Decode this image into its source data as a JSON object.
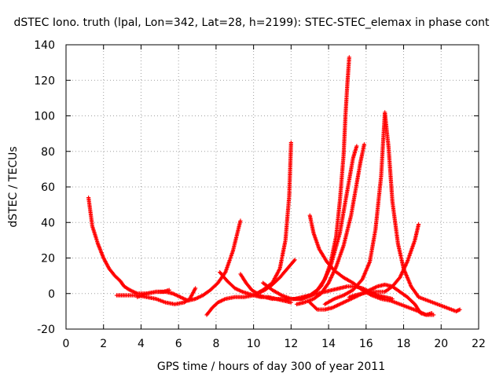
{
  "chart_data": {
    "type": "scatter",
    "title": "dSTEC Iono. truth (lpal, Lon=342, Lat=28, h=2199): STEC-STEC_elemax in phase cont",
    "xlabel": "GPS time / hours of day 300 of year 2011",
    "ylabel": "dSTEC  / TECUs",
    "xlim": [
      0,
      22
    ],
    "ylim": [
      -20,
      140
    ],
    "x_ticks": [
      0,
      2,
      4,
      6,
      8,
      10,
      12,
      14,
      16,
      18,
      20,
      22
    ],
    "y_ticks": [
      -20,
      0,
      20,
      40,
      60,
      80,
      100,
      120,
      140
    ],
    "grid": true,
    "marker": "+",
    "color": "#ff0000",
    "series": [
      {
        "x": [
          1.2,
          1.4,
          1.7,
          2.0,
          2.3,
          2.6,
          2.9,
          3.1,
          3.4,
          3.8,
          4.3,
          4.8,
          5.2,
          5.5
        ],
        "y": [
          54,
          38,
          28,
          20,
          14,
          10,
          7,
          4,
          2,
          0,
          0,
          1,
          1,
          2
        ]
      },
      {
        "x": [
          2.7,
          3.2,
          3.8,
          4.3,
          4.8,
          5.3,
          5.8,
          6.3,
          6.6,
          6.9
        ],
        "y": [
          -1,
          -1,
          -1,
          -2,
          -3,
          -5,
          -6,
          -5,
          -3,
          3
        ]
      },
      {
        "x": [
          3.8,
          4.3,
          4.8,
          5.3,
          5.7,
          6.1,
          6.5,
          6.9,
          7.3,
          7.7,
          8.1,
          8.5,
          8.9,
          9.3
        ],
        "y": [
          -2,
          0,
          1,
          1,
          0,
          -2,
          -4,
          -3,
          -1,
          2,
          6,
          12,
          24,
          41
        ]
      },
      {
        "x": [
          7.5,
          7.8,
          8.1,
          8.5,
          9.0,
          9.5,
          10.0,
          10.5,
          11.0,
          11.4,
          11.7,
          11.9,
          12.0
        ],
        "y": [
          -12,
          -8,
          -5,
          -3,
          -2,
          -2,
          -1,
          2,
          6,
          14,
          30,
          55,
          85
        ]
      },
      {
        "x": [
          8.2,
          8.6,
          9.0,
          9.4,
          9.7,
          10.0,
          10.4,
          10.8,
          11.2,
          11.6,
          12.0
        ],
        "y": [
          12,
          7,
          3,
          1,
          0,
          -1,
          -2,
          -2,
          -3,
          -4,
          -5
        ]
      },
      {
        "x": [
          9.3,
          9.6,
          9.9,
          10.2,
          10.6,
          11.0,
          11.4,
          11.8,
          12.2
        ],
        "y": [
          11,
          6,
          2,
          0,
          2,
          5,
          9,
          14,
          19
        ]
      },
      {
        "x": [
          10.2,
          10.6,
          11.0,
          11.4,
          11.8,
          12.2,
          12.6,
          13.0,
          13.4,
          13.8,
          14.2,
          14.6,
          15.0,
          15.4,
          15.8,
          16.2,
          16.6,
          17.0,
          17.4
        ],
        "y": [
          -1,
          -2,
          -3,
          -3,
          -3,
          -3,
          -2,
          -1,
          0,
          1,
          2,
          3,
          4,
          4,
          3,
          1,
          -1,
          -2,
          -3
        ]
      },
      {
        "x": [
          10.5,
          11.0,
          11.5,
          12.0,
          12.5,
          13.0,
          13.4,
          13.8,
          14.1,
          14.4,
          14.6,
          14.8,
          14.9,
          15.0,
          15.1
        ],
        "y": [
          6,
          2,
          -1,
          -3,
          -3,
          -1,
          2,
          8,
          17,
          32,
          52,
          78,
          100,
          118,
          133
        ]
      },
      {
        "x": [
          12.1,
          12.6,
          13.1,
          13.6,
          14.1,
          14.6,
          15.0,
          15.3,
          15.5
        ],
        "y": [
          -3,
          -3,
          -1,
          4,
          15,
          34,
          58,
          76,
          83
        ]
      },
      {
        "x": [
          12.3,
          12.7,
          13.2,
          13.6,
          14.0,
          14.4,
          14.8,
          15.2,
          15.5,
          15.7,
          15.9
        ],
        "y": [
          -6,
          -5,
          -3,
          0,
          6,
          15,
          27,
          44,
          62,
          74,
          84
        ]
      },
      {
        "x": [
          13.0,
          13.4,
          13.8,
          14.2,
          14.6,
          15.0,
          15.4,
          15.8,
          16.2,
          16.6,
          17.0,
          17.4,
          17.8,
          18.2,
          18.6,
          18.8
        ],
        "y": [
          -5,
          -9,
          -9,
          -8,
          -6,
          -4,
          -2,
          0,
          1,
          1,
          1,
          4,
          9,
          18,
          30,
          39
        ]
      },
      {
        "x": [
          13.0,
          13.2,
          13.5,
          13.9,
          14.3,
          14.8,
          15.3,
          15.8,
          16.3,
          16.8,
          17.3,
          17.8,
          18.3,
          18.8,
          19.2,
          19.6
        ],
        "y": [
          44,
          34,
          25,
          18,
          13,
          9,
          6,
          2,
          -1,
          -3,
          -4,
          -6,
          -8,
          -10,
          -12,
          -12
        ]
      },
      {
        "x": [
          13.8,
          14.3,
          14.8,
          15.3,
          15.8,
          16.2,
          16.5,
          16.8,
          17.0,
          17.2,
          17.4,
          17.7,
          18.0,
          18.4,
          18.8,
          19.3,
          19.8,
          20.3,
          20.8,
          21.0
        ],
        "y": [
          -6,
          -3,
          -1,
          2,
          8,
          18,
          36,
          66,
          102,
          82,
          52,
          28,
          14,
          4,
          -2,
          -4,
          -6,
          -8,
          -10,
          -9
        ]
      },
      {
        "x": [
          15.1,
          15.4,
          15.8,
          16.2,
          16.6,
          17.0,
          17.4,
          17.8,
          18.2,
          18.6,
          18.9,
          19.2,
          19.5
        ],
        "y": [
          -2,
          -1,
          0,
          2,
          4,
          5,
          4,
          1,
          -2,
          -6,
          -11,
          -12,
          -11
        ]
      }
    ]
  }
}
